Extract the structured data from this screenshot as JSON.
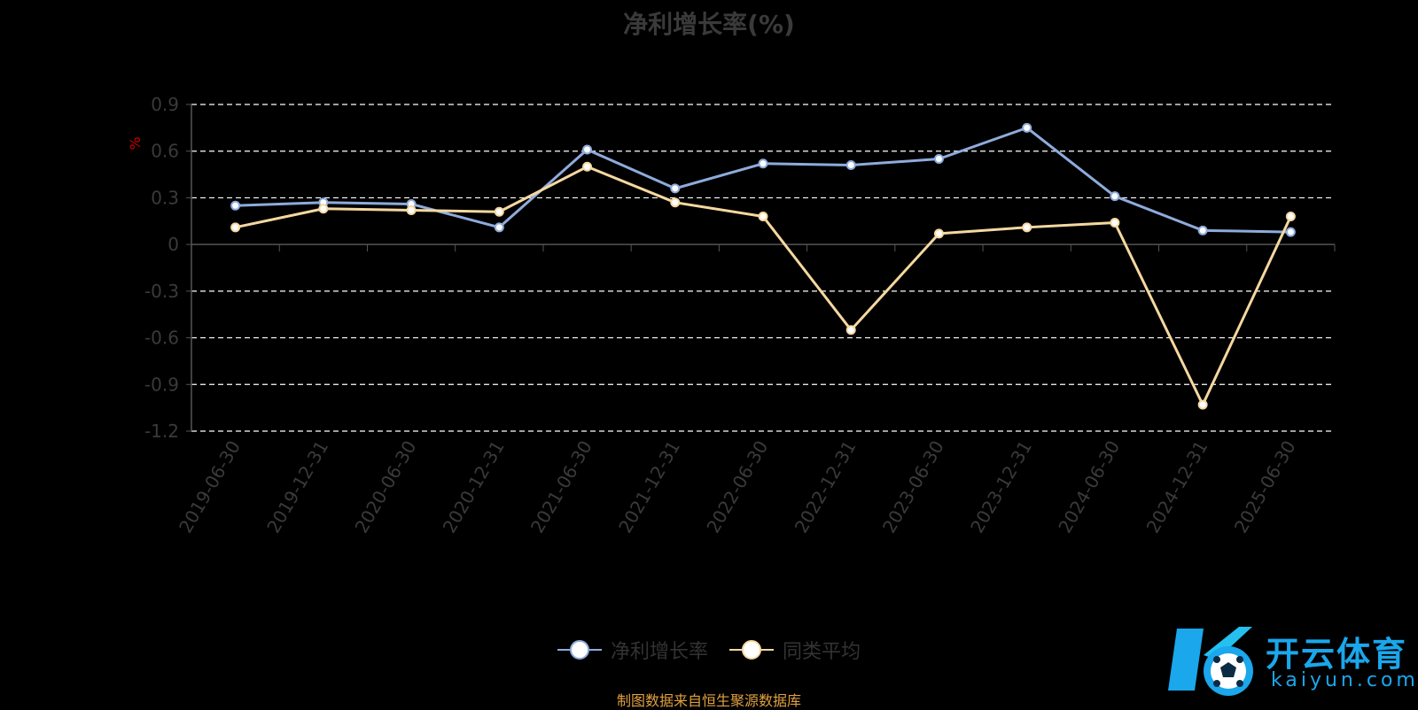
{
  "chart_data": {
    "type": "line",
    "title": "净利增长率(%)",
    "ylabel": "%",
    "xlabel": "",
    "ylim": [
      -1.2,
      0.9
    ],
    "yticks": [
      0.9,
      0.6,
      0.3,
      0,
      -0.3,
      -0.6,
      -0.9,
      -1.2
    ],
    "ytick_labels": [
      "0.9",
      "0.6",
      "0.3",
      "0",
      "-0.3",
      "-0.6",
      "-0.9",
      "-1.2"
    ],
    "grid": true,
    "legend_position": "bottom",
    "categories": [
      "2019-06-30",
      "2019-12-31",
      "2020-06-30",
      "2020-12-31",
      "2021-06-30",
      "2021-12-31",
      "2022-06-30",
      "2022-12-31",
      "2023-06-30",
      "2023-12-31",
      "2024-06-30",
      "2024-12-31",
      "2025-06-30"
    ],
    "series": [
      {
        "name": "净利增长率",
        "color": "#8eabdc",
        "values": [
          0.25,
          0.27,
          0.26,
          0.11,
          0.61,
          0.36,
          0.52,
          0.51,
          0.55,
          0.75,
          0.31,
          0.09,
          0.08
        ]
      },
      {
        "name": "同类平均",
        "color": "#f5d8a0",
        "values": [
          0.11,
          0.23,
          0.22,
          0.21,
          0.5,
          0.27,
          0.18,
          -0.55,
          0.07,
          0.11,
          0.14,
          -1.03,
          0.18
        ]
      }
    ]
  },
  "source_note": "制图数据来自恒生聚源数据库",
  "watermark": {
    "name_cn": "开云体育",
    "name_en": "kaiyun.com",
    "color": "#1aa7ec"
  }
}
